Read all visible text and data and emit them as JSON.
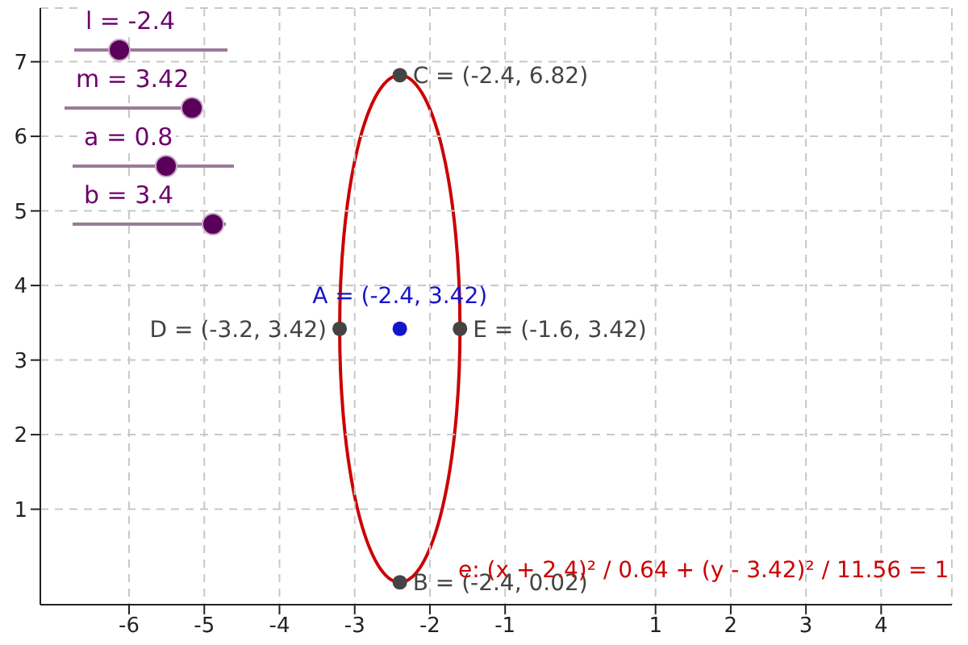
{
  "chart_data": {
    "type": "scatter",
    "xlim": [
      -7.18,
      4.94
    ],
    "ylim": [
      -0.28,
      7.72
    ],
    "xticks": [
      -6,
      -5,
      -4,
      -3,
      -2,
      -1,
      1,
      2,
      3,
      4
    ],
    "yticks": [
      1,
      2,
      3,
      4,
      5,
      6,
      7
    ],
    "grid": true,
    "legend": false,
    "marker": "circle",
    "series": [
      {
        "type": "scatter",
        "color": "#cc0000",
        "colors": [
          "#444444",
          "#1515cc",
          "#444444",
          "#444444",
          "#444444"
        ],
        "x": [
          -2.4,
          -2.4,
          -3.2,
          -1.6,
          -2.4
        ],
        "values": [
          6.82,
          3.42,
          3.42,
          3.42,
          0.02
        ]
      }
    ],
    "annotations": [
      {
        "text": "C = (-2.4, 6.82)",
        "x": -2.4,
        "y": 6.82
      },
      {
        "text": "A = (-2.4, 3.42)",
        "x": -2.4,
        "y": 3.42
      },
      {
        "text": "D = (-3.2, 3.42)",
        "x": -3.2,
        "y": 3.42
      },
      {
        "text": "E = (-1.6, 3.42)",
        "x": -1.6,
        "y": 3.42
      },
      {
        "text": "B = (-2.4, 0.02)",
        "x": -2.4,
        "y": 0.02
      },
      "l = -2.4",
      "m = 3.42",
      "a = 0.8",
      "b = 3.4",
      "e: (x + 2.4)² / 0.64 + (y - 3.42)² / 11.56 = 1"
    ]
  }
}
